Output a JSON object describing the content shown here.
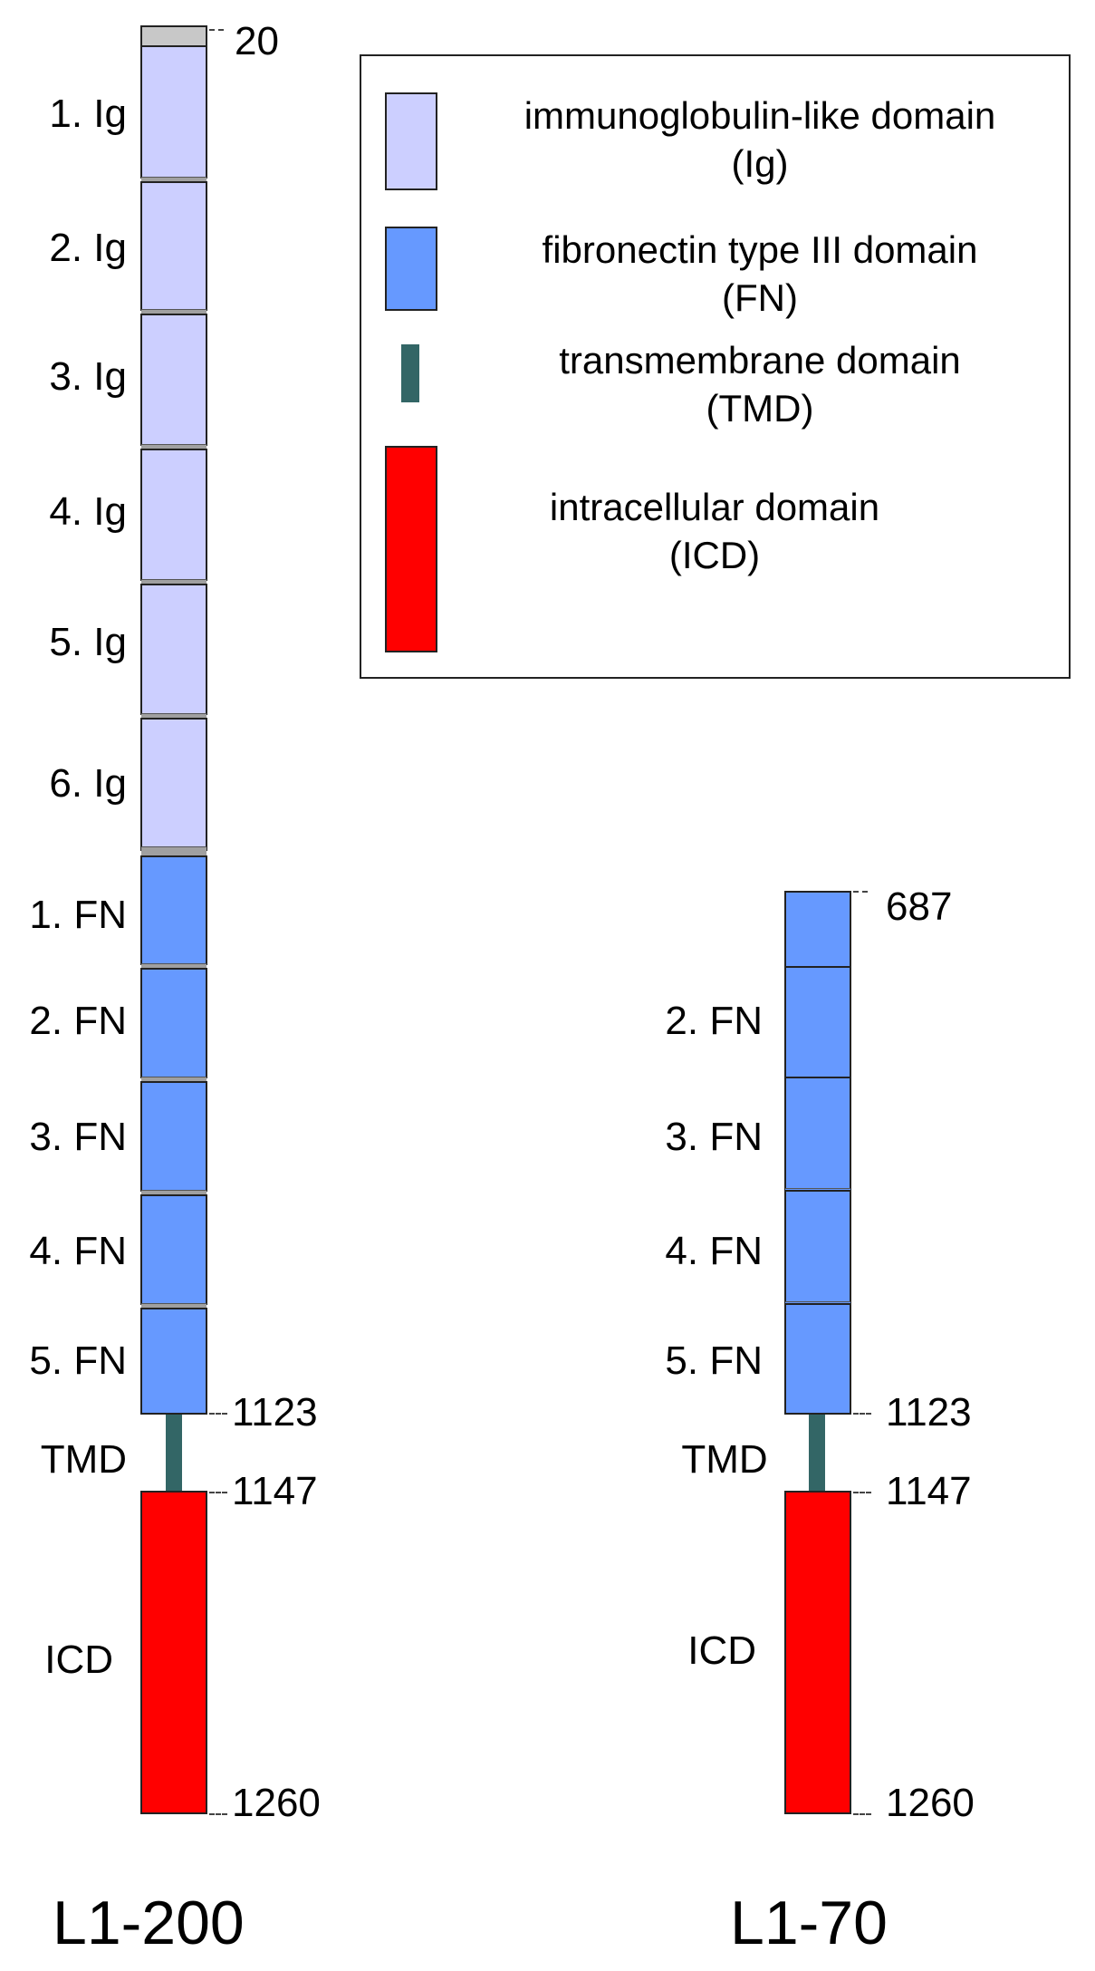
{
  "legend": {
    "items": [
      {
        "line1": "immunoglobulin-like domain",
        "line2": "(Ig)",
        "color": "#cccfff"
      },
      {
        "line1": "fibronectin type III domain",
        "line2": "(FN)",
        "color": "#6699ff"
      },
      {
        "line1": "transmembrane domain",
        "line2": "(TMD)",
        "color": "#336666"
      },
      {
        "line1": "intracellular domain",
        "line2": "(ICD)",
        "color": "#ff0000"
      }
    ]
  },
  "l1_200": {
    "name": "L1-200",
    "start": "20",
    "ig_labels": [
      "1. Ig",
      "2. Ig",
      "3. Ig",
      "4. Ig",
      "5. Ig",
      "6. Ig"
    ],
    "fn_labels": [
      "1. FN",
      "2. FN",
      "3. FN",
      "4. FN",
      "5. FN"
    ],
    "tmd_label": "TMD",
    "icd_label": "ICD",
    "fn_end": "1123",
    "tmd_end": "1147",
    "end": "1260"
  },
  "l1_70": {
    "name": "L1-70",
    "start": "687",
    "fn_labels": [
      "2. FN",
      "3. FN",
      "4. FN",
      "5. FN"
    ],
    "tmd_label": "TMD",
    "icd_label": "ICD",
    "fn_end": "1123",
    "tmd_end": "1147",
    "end": "1260"
  }
}
